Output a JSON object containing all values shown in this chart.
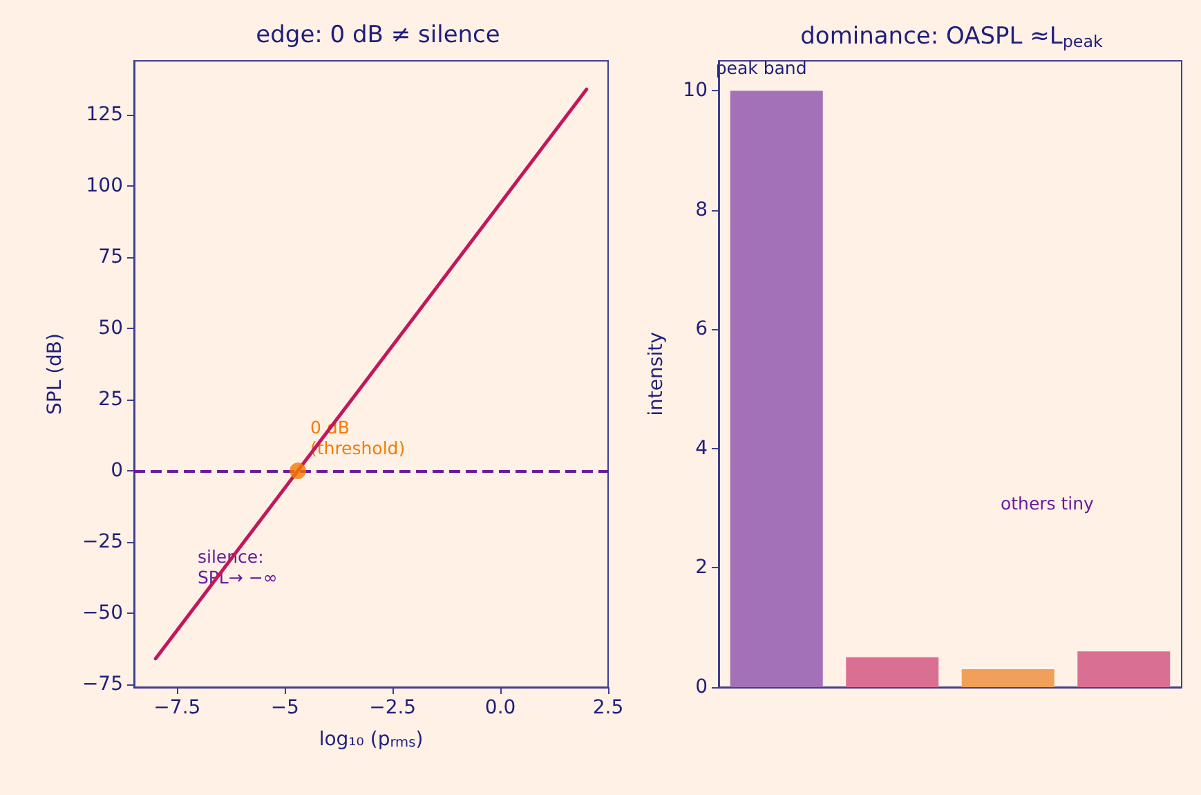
{
  "chart_data": [
    {
      "type": "line",
      "title": "edge: 0 dB ≠ silence",
      "xlabel": "log₁₀ (p$_{rms}$)",
      "ylabel": "SPL (dB)",
      "series": [
        {
          "type": "line",
          "color": "#c2185b",
          "marker": "none",
          "line_style": "solid",
          "x": [
            -8,
            -7,
            -6,
            -5,
            -4,
            -3,
            -2,
            -1,
            0,
            1,
            2
          ],
          "values": [
            -66,
            -46,
            -26,
            -6,
            14,
            34,
            54,
            74,
            94,
            114,
            134
          ]
        },
        {
          "type": "scatter",
          "color": "#f57c00",
          "marker": "circle",
          "x": [
            -4.7
          ],
          "values": [
            0
          ]
        }
      ],
      "ref_lines": [
        {
          "axis": "y",
          "value": 0,
          "color": "#6a1b9a",
          "line_style": "dashed"
        }
      ],
      "annotations": [
        {
          "text": "0 dB\n(threshold)",
          "x": -4.7,
          "y": 0
        },
        "silence:\nSPL→ −∞"
      ],
      "xlim": [
        -8.5,
        2.5
      ],
      "xticks": [
        -7.5,
        -5,
        -2.5,
        {
          "value": 0,
          "label": "0.0"
        },
        2.5
      ],
      "ylim": [
        -76,
        144
      ],
      "yticks": [
        -75,
        -50,
        -25,
        0,
        25,
        50,
        75,
        100,
        125
      ]
    },
    {
      "type": "bar",
      "title": "dominance: OASPL ≈L$_{peak}$",
      "ylabel": "intensity",
      "categories": [
        null,
        null,
        null,
        null
      ],
      "values": [
        10,
        0.5,
        0.3,
        0.6
      ],
      "colors": [
        "#a371b8",
        "#d96f93",
        "#f0a05a",
        "#d96f93"
      ],
      "annotations": [
        "peak band",
        "others tiny"
      ],
      "ylim": [
        0,
        10.5
      ],
      "yticks": [
        0,
        2,
        4,
        6,
        8,
        10
      ]
    }
  ]
}
